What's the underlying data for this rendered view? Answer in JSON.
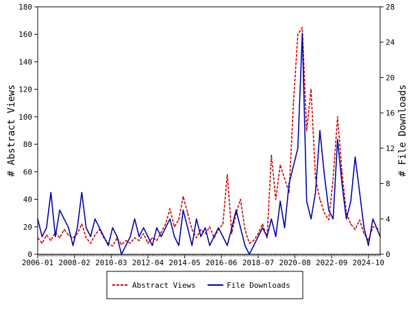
{
  "chart_data": {
    "type": "line",
    "ylabel_left": "# Abstract Views",
    "ylabel_right": "# File Downloads",
    "ylim_left": [
      0,
      180
    ],
    "ylim_right": [
      0,
      28
    ],
    "yticks_left": [
      "0",
      "20",
      "40",
      "60",
      "80",
      "100",
      "120",
      "140",
      "160",
      "180"
    ],
    "yticks_right": [
      "0",
      "4",
      "8",
      "12",
      "16",
      "20",
      "24",
      "28"
    ],
    "x_labels": [
      "2006-01",
      "2008-02",
      "2010-03",
      "2012-04",
      "2014-05",
      "2016-06",
      "2018-07",
      "2020-08",
      "2022-09",
      "2024-10"
    ],
    "x_range": [
      "2006-01",
      "2025-06"
    ],
    "grid": false,
    "legend_position": "bottom-center",
    "series": [
      {
        "name": "Abstract Views",
        "axis": "left",
        "color": "#cc0000",
        "style": "dashed",
        "points": [
          [
            "2006-01",
            12
          ],
          [
            "2006-04",
            8
          ],
          [
            "2006-07",
            14
          ],
          [
            "2006-10",
            10
          ],
          [
            "2007-01",
            16
          ],
          [
            "2007-04",
            12
          ],
          [
            "2007-07",
            18
          ],
          [
            "2007-10",
            14
          ],
          [
            "2008-01",
            12
          ],
          [
            "2008-04",
            15
          ],
          [
            "2008-07",
            22
          ],
          [
            "2008-10",
            12
          ],
          [
            "2009-01",
            8
          ],
          [
            "2009-04",
            14
          ],
          [
            "2009-07",
            18
          ],
          [
            "2009-10",
            12
          ],
          [
            "2010-01",
            8
          ],
          [
            "2010-04",
            6
          ],
          [
            "2010-07",
            12
          ],
          [
            "2010-10",
            7
          ],
          [
            "2011-01",
            10
          ],
          [
            "2011-04",
            8
          ],
          [
            "2011-07",
            12
          ],
          [
            "2011-10",
            10
          ],
          [
            "2012-01",
            15
          ],
          [
            "2012-04",
            8
          ],
          [
            "2012-07",
            12
          ],
          [
            "2012-10",
            10
          ],
          [
            "2013-01",
            16
          ],
          [
            "2013-04",
            22
          ],
          [
            "2013-07",
            33
          ],
          [
            "2013-10",
            20
          ],
          [
            "2014-01",
            25
          ],
          [
            "2014-04",
            42
          ],
          [
            "2014-07",
            30
          ],
          [
            "2014-10",
            18
          ],
          [
            "2015-01",
            12
          ],
          [
            "2015-04",
            18
          ],
          [
            "2015-07",
            15
          ],
          [
            "2015-10",
            20
          ],
          [
            "2016-01",
            12
          ],
          [
            "2016-04",
            18
          ],
          [
            "2016-07",
            22
          ],
          [
            "2016-10",
            58
          ],
          [
            "2017-01",
            15
          ],
          [
            "2017-04",
            30
          ],
          [
            "2017-07",
            40
          ],
          [
            "2017-10",
            18
          ],
          [
            "2018-01",
            8
          ],
          [
            "2018-04",
            10
          ],
          [
            "2018-07",
            15
          ],
          [
            "2018-10",
            22
          ],
          [
            "2019-01",
            12
          ],
          [
            "2019-04",
            72
          ],
          [
            "2019-07",
            40
          ],
          [
            "2019-10",
            65
          ],
          [
            "2020-01",
            55
          ],
          [
            "2020-04",
            45
          ],
          [
            "2020-07",
            110
          ],
          [
            "2020-10",
            160
          ],
          [
            "2021-01",
            165
          ],
          [
            "2021-04",
            90
          ],
          [
            "2021-07",
            120
          ],
          [
            "2021-10",
            55
          ],
          [
            "2022-01",
            40
          ],
          [
            "2022-04",
            30
          ],
          [
            "2022-07",
            25
          ],
          [
            "2022-10",
            55
          ],
          [
            "2023-01",
            100
          ],
          [
            "2023-04",
            60
          ],
          [
            "2023-07",
            30
          ],
          [
            "2023-10",
            22
          ],
          [
            "2024-01",
            18
          ],
          [
            "2024-04",
            25
          ],
          [
            "2024-07",
            15
          ],
          [
            "2024-10",
            10
          ],
          [
            "2025-01",
            20
          ],
          [
            "2025-06",
            18
          ]
        ]
      },
      {
        "name": "File Downloads",
        "axis": "right",
        "color": "#0000aa",
        "style": "solid",
        "points": [
          [
            "2006-01",
            4
          ],
          [
            "2006-04",
            2
          ],
          [
            "2006-07",
            3
          ],
          [
            "2006-10",
            7
          ],
          [
            "2007-01",
            2
          ],
          [
            "2007-04",
            5
          ],
          [
            "2007-07",
            4
          ],
          [
            "2007-10",
            3
          ],
          [
            "2008-01",
            1
          ],
          [
            "2008-04",
            3
          ],
          [
            "2008-07",
            7
          ],
          [
            "2008-10",
            3
          ],
          [
            "2009-01",
            2
          ],
          [
            "2009-04",
            4
          ],
          [
            "2009-07",
            3
          ],
          [
            "2009-10",
            2
          ],
          [
            "2010-01",
            1
          ],
          [
            "2010-04",
            3
          ],
          [
            "2010-07",
            2
          ],
          [
            "2010-10",
            0
          ],
          [
            "2011-01",
            1
          ],
          [
            "2011-04",
            2
          ],
          [
            "2011-07",
            4
          ],
          [
            "2011-10",
            2
          ],
          [
            "2012-01",
            3
          ],
          [
            "2012-04",
            2
          ],
          [
            "2012-07",
            1
          ],
          [
            "2012-10",
            3
          ],
          [
            "2013-01",
            2
          ],
          [
            "2013-04",
            3
          ],
          [
            "2013-07",
            4
          ],
          [
            "2013-10",
            2
          ],
          [
            "2014-01",
            1
          ],
          [
            "2014-04",
            5
          ],
          [
            "2014-07",
            3
          ],
          [
            "2014-10",
            1
          ],
          [
            "2015-01",
            4
          ],
          [
            "2015-04",
            2
          ],
          [
            "2015-07",
            3
          ],
          [
            "2015-10",
            1
          ],
          [
            "2016-01",
            2
          ],
          [
            "2016-04",
            3
          ],
          [
            "2016-07",
            2
          ],
          [
            "2016-10",
            1
          ],
          [
            "2017-01",
            3
          ],
          [
            "2017-04",
            5
          ],
          [
            "2017-07",
            3
          ],
          [
            "2017-10",
            1
          ],
          [
            "2018-01",
            0
          ],
          [
            "2018-04",
            1
          ],
          [
            "2018-07",
            2
          ],
          [
            "2018-10",
            3
          ],
          [
            "2019-01",
            2
          ],
          [
            "2019-04",
            4
          ],
          [
            "2019-07",
            2
          ],
          [
            "2019-10",
            6
          ],
          [
            "2020-01",
            3
          ],
          [
            "2020-04",
            8
          ],
          [
            "2020-07",
            10
          ],
          [
            "2020-10",
            12
          ],
          [
            "2021-01",
            25
          ],
          [
            "2021-04",
            6
          ],
          [
            "2021-07",
            4
          ],
          [
            "2021-10",
            7
          ],
          [
            "2022-01",
            14
          ],
          [
            "2022-04",
            9
          ],
          [
            "2022-07",
            5
          ],
          [
            "2022-10",
            4
          ],
          [
            "2023-01",
            13
          ],
          [
            "2023-04",
            8
          ],
          [
            "2023-07",
            4
          ],
          [
            "2023-10",
            6
          ],
          [
            "2024-01",
            11
          ],
          [
            "2024-04",
            7
          ],
          [
            "2024-07",
            3
          ],
          [
            "2024-10",
            1
          ],
          [
            "2025-01",
            4
          ],
          [
            "2025-06",
            2
          ]
        ]
      }
    ]
  }
}
